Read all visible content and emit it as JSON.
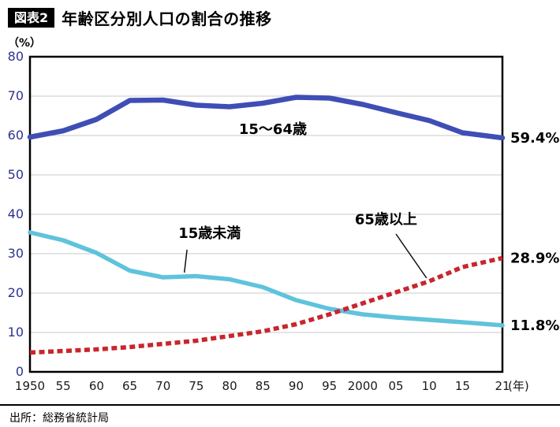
{
  "header": {
    "badge": "図表2",
    "title": "年齢区分別人口の割合の推移"
  },
  "footer": {
    "source": "出所：総務省統計局"
  },
  "chart_data": {
    "type": "line",
    "unit_label": "（%）",
    "x_unit_label": "(年)",
    "x": [
      1950,
      1955,
      1960,
      1965,
      1970,
      1975,
      1980,
      1985,
      1990,
      1995,
      2000,
      2005,
      2010,
      2015,
      2021
    ],
    "x_tick_labels": [
      "1950",
      "55",
      "60",
      "65",
      "70",
      "75",
      "80",
      "85",
      "90",
      "95",
      "2000",
      "05",
      "10",
      "15",
      "21"
    ],
    "ylim": [
      0,
      80
    ],
    "y_ticks": [
      0,
      10,
      20,
      30,
      40,
      50,
      60,
      70,
      80
    ],
    "grid": true,
    "legend_position": "inline-annotations",
    "colors": {
      "grid": "#c9c9c9",
      "y_label": "#2e3192",
      "x_label": "#1a1a1a",
      "border": "#000000"
    },
    "series": [
      {
        "id": "15-64",
        "name": "15〜64歳",
        "color": "#3f4eb5",
        "style": "solid",
        "width": 6.5,
        "values": [
          59.6,
          61.2,
          64.1,
          68.9,
          69.0,
          67.7,
          67.3,
          68.2,
          69.7,
          69.5,
          67.9,
          65.8,
          63.8,
          60.7,
          59.4
        ],
        "end_label": "59.4%"
      },
      {
        "id": "under-15",
        "name": "15歳未満",
        "color": "#5fc3dc",
        "style": "solid",
        "width": 5.5,
        "values": [
          35.4,
          33.4,
          30.2,
          25.7,
          24.0,
          24.3,
          23.5,
          21.5,
          18.2,
          16.0,
          14.6,
          13.8,
          13.2,
          12.6,
          11.8
        ],
        "end_label": "11.8%"
      },
      {
        "id": "65-over",
        "name": "65歳以上",
        "color": "#c9252d",
        "style": "dashed",
        "width": 5.5,
        "values": [
          4.9,
          5.3,
          5.7,
          6.3,
          7.1,
          7.9,
          9.1,
          10.3,
          12.1,
          14.6,
          17.4,
          20.2,
          23.0,
          26.6,
          28.9
        ],
        "end_label": "28.9%"
      }
    ],
    "annotations": [
      {
        "text": "15〜64歳",
        "x": 1986.5,
        "y": 60.4,
        "connector": null
      },
      {
        "text": "15歳未満",
        "x": 1977,
        "y": 34.0,
        "connector": {
          "x1": 1973.6,
          "y1": 31.0,
          "x2": 1973.2,
          "y2": 25.2
        }
      },
      {
        "text": "65歳以上",
        "x": 2003.5,
        "y": 37.5,
        "connector": {
          "x1": 2005.0,
          "y1": 35.0,
          "x2": 2009.6,
          "y2": 23.8
        }
      }
    ]
  }
}
